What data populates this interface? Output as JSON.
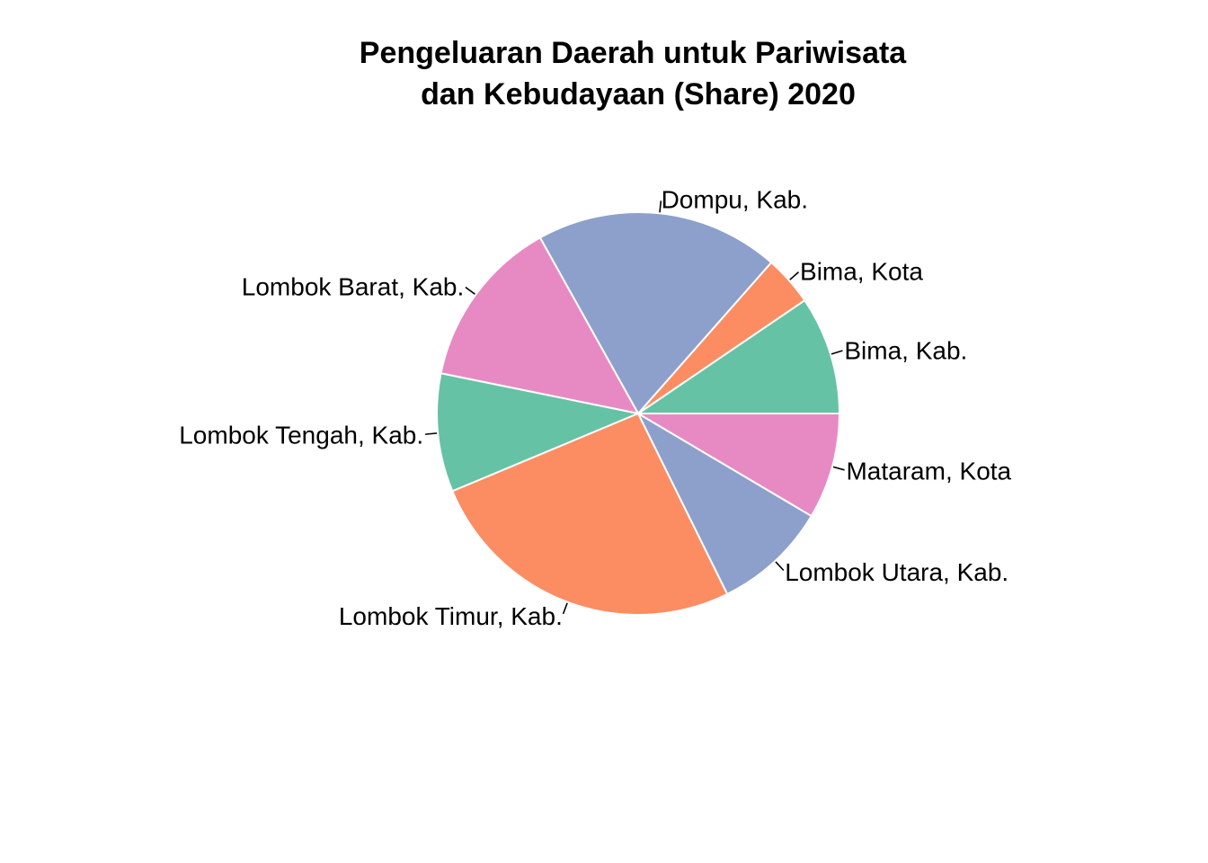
{
  "chart_data": {
    "type": "pie",
    "title": "Pengeluaran Daerah untuk Pariwisata",
    "subtitle": "dan Kebudayaan (Share) 2020",
    "direction": "counter-clockwise from 3 o'clock",
    "slices": [
      {
        "label": "Bima, Kab.",
        "value": 9.5,
        "color": "#66c2a5"
      },
      {
        "label": "Bima, Kota",
        "value": 4.0,
        "color": "#fc8d62"
      },
      {
        "label": "Dompu, Kab.",
        "value": 19.6,
        "color": "#8da0cb"
      },
      {
        "label": "Lombok Barat, Kab.",
        "value": 13.7,
        "color": "#e78ac3"
      },
      {
        "label": "Lombok Tengah, Kab.",
        "value": 9.5,
        "color": "#66c2a5"
      },
      {
        "label": "Lombok Timur, Kab.",
        "value": 26.0,
        "color": "#fc8d62"
      },
      {
        "label": "Lombok Utara, Kab.",
        "value": 9.2,
        "color": "#8da0cb"
      },
      {
        "label": "Mataram, Kota",
        "value": 8.5,
        "color": "#e78ac3"
      }
    ]
  }
}
